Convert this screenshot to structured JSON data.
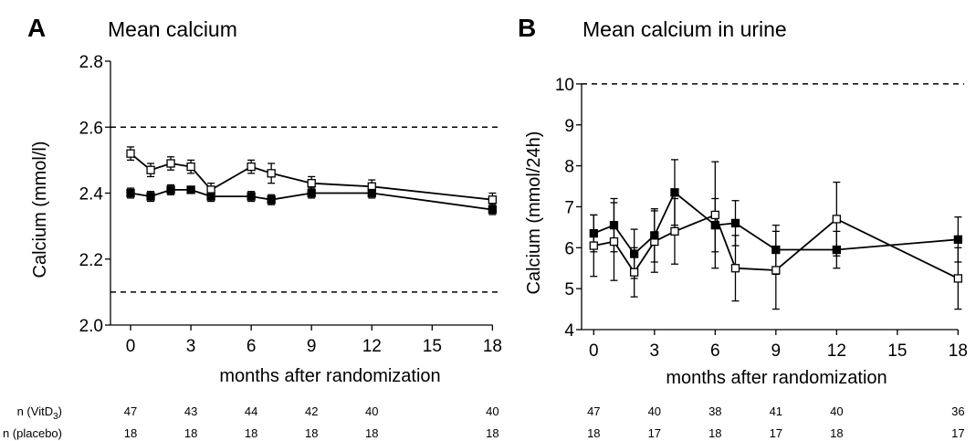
{
  "chart_data": [
    {
      "type": "line",
      "panel_letter": "A",
      "title": "Mean calcium",
      "xlabel": "months after randomization",
      "ylabel": "Calcium (mmol/l)",
      "xlim": [
        -1,
        18.3
      ],
      "ylim": [
        2.0,
        2.8
      ],
      "x_ticks": [
        0,
        3,
        6,
        9,
        12,
        15,
        18
      ],
      "y_ticks": [
        "2.0",
        "2.2",
        "2.4",
        "2.6",
        "2.8"
      ],
      "reference_lines": [
        2.6,
        2.1
      ],
      "grid": false,
      "series": [
        {
          "marker": "open-square",
          "x": [
            0,
            1,
            2,
            3,
            4,
            6,
            7,
            9,
            12,
            18
          ],
          "y": [
            2.52,
            2.47,
            2.49,
            2.48,
            2.41,
            2.48,
            2.46,
            2.43,
            2.42,
            2.38
          ],
          "err": [
            0.02,
            0.02,
            0.02,
            0.02,
            0.02,
            0.02,
            0.03,
            0.02,
            0.02,
            0.02
          ]
        },
        {
          "marker": "filled-square",
          "x": [
            0,
            1,
            2,
            3,
            4,
            6,
            7,
            9,
            12,
            18
          ],
          "y": [
            2.4,
            2.39,
            2.41,
            2.41,
            2.39,
            2.39,
            2.38,
            2.4,
            2.4,
            2.35
          ],
          "err": [
            0.015,
            0.015,
            0.015,
            0.01,
            0.015,
            0.015,
            0.015,
            0.015,
            0.015,
            0.015
          ]
        }
      ]
    },
    {
      "type": "line",
      "panel_letter": "B",
      "title": "Mean calcium in urine",
      "xlabel": "months after randomization",
      "ylabel": "Calcium (mmol/24h)",
      "xlim": [
        -0.6,
        18.3
      ],
      "ylim": [
        4,
        10.6
      ],
      "x_ticks": [
        0,
        3,
        6,
        9,
        12,
        15,
        18
      ],
      "y_ticks": [
        "4",
        "5",
        "6",
        "7",
        "8",
        "9",
        "10"
      ],
      "reference_lines": [
        10
      ],
      "grid": false,
      "series": [
        {
          "marker": "open-square",
          "x": [
            0,
            1,
            2,
            3,
            4,
            6,
            7,
            9,
            12,
            18
          ],
          "y": [
            6.05,
            6.15,
            5.4,
            6.15,
            6.4,
            6.8,
            5.5,
            5.45,
            6.7,
            5.25
          ],
          "err": [
            0.75,
            0.95,
            0.6,
            0.75,
            0.8,
            1.3,
            0.8,
            0.95,
            0.9,
            0.75
          ]
        },
        {
          "marker": "filled-square",
          "x": [
            0,
            1,
            2,
            3,
            4,
            6,
            7,
            9,
            12,
            18
          ],
          "y": [
            6.35,
            6.55,
            5.85,
            6.3,
            7.35,
            6.55,
            6.6,
            5.95,
            5.95,
            6.2
          ],
          "err": [
            0.45,
            0.65,
            0.6,
            0.65,
            0.8,
            0.65,
            0.55,
            0.6,
            0.45,
            0.55
          ]
        }
      ]
    }
  ],
  "n_table": {
    "row_labels": [
      "n (VitD3)",
      "n (placebo)"
    ],
    "row_label_parts": [
      {
        "main": "n (VitD",
        "sub": "3",
        "end": ")"
      },
      {
        "main": "n (placebo)",
        "sub": "",
        "end": ""
      }
    ],
    "panel_A": {
      "months": [
        0,
        3,
        6,
        9,
        12,
        18
      ],
      "vitd3": [
        "47",
        "43",
        "44",
        "42",
        "40",
        "40"
      ],
      "placebo": [
        "18",
        "18",
        "18",
        "18",
        "18",
        "18"
      ]
    },
    "panel_B": {
      "months": [
        0,
        3,
        6,
        9,
        12,
        18
      ],
      "vitd3": [
        "47",
        "40",
        "38",
        "41",
        "40",
        "36"
      ],
      "placebo": [
        "18",
        "17",
        "18",
        "17",
        "18",
        "17"
      ]
    }
  }
}
